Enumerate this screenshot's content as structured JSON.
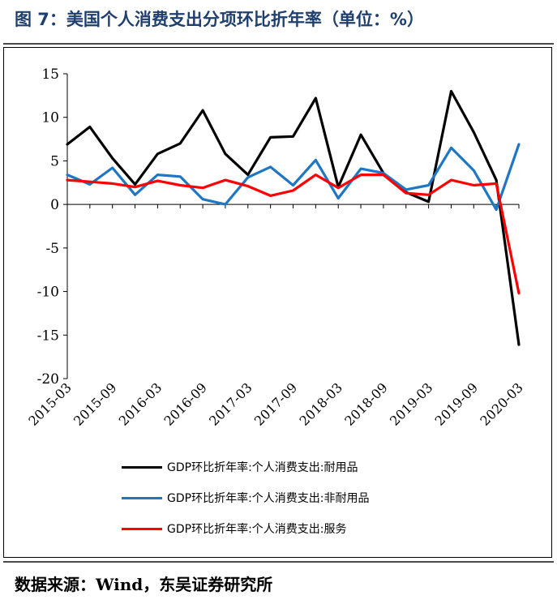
{
  "header": {
    "title": "图 7：美国个人消费支出分项环比折年率（单位：%）"
  },
  "footer": {
    "source": "数据来源：Wind，东吴证券研究所"
  },
  "chart_data": {
    "type": "line",
    "title": "",
    "xlabel": "",
    "ylabel": "",
    "ylim": [
      -20,
      15
    ],
    "yticks": [
      15,
      10,
      5,
      0,
      -5,
      -10,
      -15,
      -20
    ],
    "x": [
      "2015-03",
      "2015-06",
      "2015-09",
      "2015-12",
      "2016-03",
      "2016-06",
      "2016-09",
      "2016-12",
      "2017-03",
      "2017-06",
      "2017-09",
      "2017-12",
      "2018-03",
      "2018-06",
      "2018-09",
      "2018-12",
      "2019-03",
      "2019-06",
      "2019-09",
      "2019-12",
      "2020-03"
    ],
    "xtick_labels": [
      "2015-03",
      "2015-09",
      "2016-03",
      "2016-09",
      "2017-03",
      "2017-09",
      "2018-03",
      "2018-09",
      "2019-03",
      "2019-09",
      "2020-03"
    ],
    "grid": false,
    "legend_position": "bottom",
    "series": [
      {
        "name": "GDP环比折年率:个人消费支出:耐用品",
        "color": "#000000",
        "values": [
          6.9,
          8.9,
          5.3,
          2.3,
          5.8,
          7.0,
          10.8,
          5.8,
          3.4,
          7.7,
          7.8,
          12.2,
          2.0,
          8.0,
          3.6,
          1.4,
          0.3,
          13.0,
          8.3,
          2.8,
          -16.1
        ]
      },
      {
        "name": "GDP环比折年率:个人消费支出:非耐用品",
        "color": "#1f77c4",
        "values": [
          3.4,
          2.3,
          4.2,
          1.1,
          3.4,
          3.2,
          0.6,
          0.0,
          3.1,
          4.3,
          2.2,
          5.1,
          0.7,
          4.1,
          3.6,
          1.7,
          2.2,
          6.5,
          3.9,
          -0.6,
          6.9
        ]
      },
      {
        "name": "GDP环比折年率:个人消费支出:服务",
        "color": "#ff0000",
        "values": [
          2.8,
          2.6,
          2.4,
          2.0,
          2.7,
          2.2,
          1.9,
          2.8,
          2.1,
          1.0,
          1.6,
          3.4,
          1.9,
          3.4,
          3.4,
          1.3,
          1.1,
          2.8,
          2.2,
          2.4,
          -10.2
        ]
      }
    ]
  }
}
